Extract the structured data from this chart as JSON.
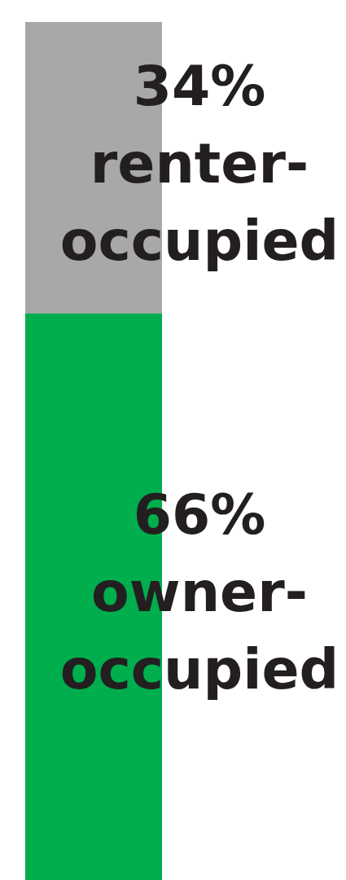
{
  "chart_data": {
    "type": "bar",
    "stacked": true,
    "categories": [
      null
    ],
    "ylim": [
      0,
      100
    ],
    "tick_labels": false,
    "grid": false,
    "legend": false,
    "series": [
      {
        "name": "owner-occupied",
        "color": "#00ae4d",
        "values": [
          66
        ],
        "value_labels": [
          "66%"
        ]
      },
      {
        "name": "renter-occupied",
        "color": "#a8a8a8",
        "values": [
          34
        ],
        "value_labels": [
          "34%"
        ]
      }
    ]
  }
}
